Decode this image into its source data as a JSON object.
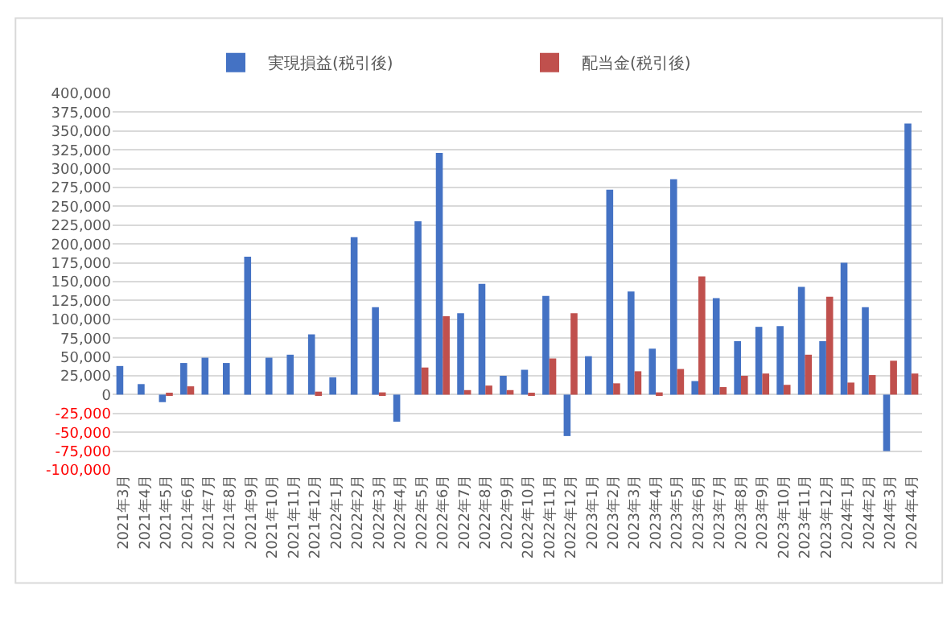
{
  "chart_data": {
    "type": "bar",
    "categories": [
      "2021年3月",
      "2021年4月",
      "2021年5月",
      "2021年6月",
      "2021年7月",
      "2021年8月",
      "2021年9月",
      "2021年10月",
      "2021年11月",
      "2021年12月",
      "2022年1月",
      "2022年2月",
      "2022年3月",
      "2022年4月",
      "2022年5月",
      "2022年6月",
      "2022年7月",
      "2022年8月",
      "2022年9月",
      "2022年10月",
      "2022年11月",
      "2022年12月",
      "2023年1月",
      "2023年2月",
      "2023年3月",
      "2023年4月",
      "2023年5月",
      "2023年6月",
      "2023年7月",
      "2023年8月",
      "2023年9月",
      "2023年10月",
      "2023年11月",
      "2023年12月",
      "2024年1月",
      "2024年2月",
      "2024年3月",
      "2024年4月"
    ],
    "series": [
      {
        "name": "実現損益(税引後)",
        "color": "#4472c4",
        "values": [
          38000,
          14000,
          -10000,
          42000,
          49000,
          42000,
          183000,
          49000,
          53000,
          80000,
          23000,
          209000,
          116000,
          -36000,
          230000,
          321000,
          108000,
          147000,
          25000,
          33000,
          131000,
          -55000,
          51000,
          272000,
          137000,
          61000,
          286000,
          18000,
          128000,
          71000,
          90000,
          91000,
          143000,
          71000,
          175000,
          116000,
          -75000,
          360000
        ]
      },
      {
        "name": "配当金(税引後)",
        "color": "#c0504d",
        "values": [
          null,
          null,
          2000,
          11000,
          null,
          null,
          null,
          null,
          null,
          4000,
          null,
          null,
          3000,
          null,
          36000,
          104000,
          6000,
          12000,
          6000,
          2000,
          48000,
          108000,
          null,
          15000,
          31000,
          3000,
          34000,
          157000,
          10000,
          25000,
          28000,
          13000,
          53000,
          130000,
          16000,
          26000,
          45000,
          28000
        ]
      }
    ],
    "ylim": [
      -100000,
      400000
    ],
    "yticks": [
      {
        "value": -100000,
        "label": "-100,000"
      },
      {
        "value": -75000,
        "label": "-75,000"
      },
      {
        "value": -50000,
        "label": "-50,000"
      },
      {
        "value": -25000,
        "label": "-25,000"
      },
      {
        "value": 0,
        "label": "0"
      },
      {
        "value": 25000,
        "label": "25,000"
      },
      {
        "value": 50000,
        "label": "50,000"
      },
      {
        "value": 75000,
        "label": "75,000"
      },
      {
        "value": 100000,
        "label": "100,000"
      },
      {
        "value": 125000,
        "label": "125,000"
      },
      {
        "value": 150000,
        "label": "150,000"
      },
      {
        "value": 175000,
        "label": "175,000"
      },
      {
        "value": 200000,
        "label": "200,000"
      },
      {
        "value": 225000,
        "label": "225,000"
      },
      {
        "value": 250000,
        "label": "250,000"
      },
      {
        "value": 275000,
        "label": "275,000"
      },
      {
        "value": 300000,
        "label": "300,000"
      },
      {
        "value": 325000,
        "label": "325,000"
      },
      {
        "value": 350000,
        "label": "350,000"
      },
      {
        "value": 375000,
        "label": "375,000"
      },
      {
        "value": 400000,
        "label": "400,000"
      }
    ],
    "grid": "y",
    "legend": "top"
  }
}
